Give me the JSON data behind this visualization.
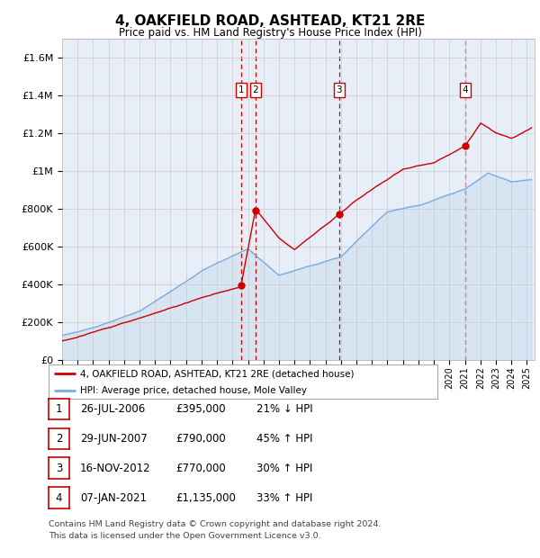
{
  "title": "4, OAKFIELD ROAD, ASHTEAD, KT21 2RE",
  "subtitle": "Price paid vs. HM Land Registry's House Price Index (HPI)",
  "ylabel_ticks": [
    "£0",
    "£200K",
    "£400K",
    "£600K",
    "£800K",
    "£1M",
    "£1.2M",
    "£1.4M",
    "£1.6M"
  ],
  "ytick_values": [
    0,
    200000,
    400000,
    600000,
    800000,
    1000000,
    1200000,
    1400000,
    1600000
  ],
  "ylim": [
    0,
    1700000
  ],
  "xlim_start": 1995.0,
  "xlim_end": 2025.5,
  "transactions": [
    {
      "num": 1,
      "date_str": "26-JUL-2006",
      "date_x": 2006.57,
      "price": 395000
    },
    {
      "num": 2,
      "date_str": "29-JUN-2007",
      "date_x": 2007.49,
      "price": 790000
    },
    {
      "num": 3,
      "date_str": "16-NOV-2012",
      "date_x": 2012.88,
      "price": 770000
    },
    {
      "num": 4,
      "date_str": "07-JAN-2021",
      "date_x": 2021.02,
      "price": 1135000
    }
  ],
  "legend_entries": [
    "4, OAKFIELD ROAD, ASHTEAD, KT21 2RE (detached house)",
    "HPI: Average price, detached house, Mole Valley"
  ],
  "footer_lines": [
    "Contains HM Land Registry data © Crown copyright and database right 2024.",
    "This data is licensed under the Open Government Licence v3.0."
  ],
  "table_rows": [
    [
      "1",
      "26-JUL-2006",
      "£395,000",
      "21% ↓ HPI"
    ],
    [
      "2",
      "29-JUN-2007",
      "£790,000",
      "45% ↑ HPI"
    ],
    [
      "3",
      "16-NOV-2012",
      "£770,000",
      "30% ↑ HPI"
    ],
    [
      "4",
      "07-JAN-2021",
      "£1,135,000",
      "33% ↑ HPI"
    ]
  ],
  "red_line_color": "#cc0000",
  "blue_line_color": "#7aaddc",
  "blue_fill_color": "#c8ddf0",
  "background_color": "#e8eef8",
  "grid_color": "#cccccc",
  "dashed_line_color": "#cc0000",
  "box_color": "#cc0000",
  "title_fontsize": 11,
  "subtitle_fontsize": 9
}
